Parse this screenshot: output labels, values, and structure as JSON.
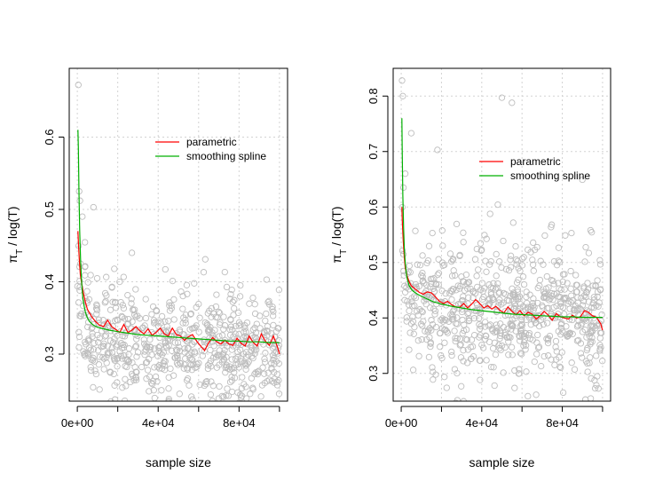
{
  "chart_data": [
    {
      "type": "scatter",
      "title": "",
      "xlabel": "sample size",
      "ylabel_symbol": "π",
      "ylabel_subscript": "T",
      "ylabel_rest": " / log(T)",
      "xlim": [
        -4000,
        104000
      ],
      "ylim": [
        0.235,
        0.695
      ],
      "xticks": [
        0,
        20000,
        40000,
        60000,
        80000,
        100000
      ],
      "xtick_labels": [
        "0e+00",
        "",
        "4e+04",
        "",
        "8e+04",
        ""
      ],
      "yticks": [
        0.3,
        0.4,
        0.5,
        0.6
      ],
      "ytick_labels": [
        "0.3",
        "0.4",
        "0.5",
        "0.6"
      ],
      "grid": true,
      "legend_position": "top-right",
      "point_color": "#bdbdbd",
      "scatter": {
        "description_free": true,
        "n_points": 700,
        "x_max": 100000,
        "curve": {
          "base": 0.3,
          "amp": 0.055,
          "scale": 2200
        },
        "noise_sd": 0.04,
        "seed": 17,
        "extra_points": [
          [
            500,
            0.672
          ],
          [
            900,
            0.525
          ],
          [
            1300,
            0.512
          ],
          [
            2500,
            0.49
          ],
          [
            8000,
            0.503
          ],
          [
            27000,
            0.44
          ]
        ]
      },
      "series": [
        {
          "name": "parametric",
          "color": "#ff0000",
          "x": [
            300,
            600,
            1000,
            1500,
            2000,
            3000,
            4000,
            5000,
            7000,
            9000,
            11000,
            13000,
            15000,
            17000,
            19000,
            21000,
            23000,
            25000,
            27000,
            29000,
            31000,
            33000,
            35000,
            37000,
            39000,
            41000,
            43000,
            45000,
            47000,
            49000,
            51000,
            53000,
            55000,
            57000,
            59000,
            61000,
            63000,
            65000,
            67000,
            69000,
            71000,
            73000,
            75000,
            77000,
            79000,
            81000,
            83000,
            85000,
            87000,
            89000,
            91000,
            93000,
            95000,
            97000,
            99000,
            100000
          ],
          "y": [
            0.47,
            0.45,
            0.43,
            0.41,
            0.4,
            0.385,
            0.372,
            0.362,
            0.352,
            0.345,
            0.34,
            0.338,
            0.347,
            0.338,
            0.334,
            0.33,
            0.341,
            0.33,
            0.333,
            0.338,
            0.332,
            0.328,
            0.335,
            0.326,
            0.33,
            0.336,
            0.328,
            0.325,
            0.336,
            0.327,
            0.325,
            0.319,
            0.324,
            0.327,
            0.318,
            0.311,
            0.305,
            0.316,
            0.323,
            0.317,
            0.314,
            0.319,
            0.314,
            0.312,
            0.322,
            0.315,
            0.311,
            0.325,
            0.316,
            0.311,
            0.328,
            0.318,
            0.312,
            0.325,
            0.31,
            0.3
          ]
        },
        {
          "name": "smoothing spline",
          "color": "#00b000",
          "x": [
            300,
            500,
            800,
            1200,
            1600,
            2000,
            2500,
            3000,
            4000,
            5000,
            6000,
            8000,
            10000,
            13000,
            16000,
            20000,
            25000,
            30000,
            35000,
            40000,
            45000,
            50000,
            55000,
            60000,
            65000,
            70000,
            75000,
            80000,
            85000,
            90000,
            95000,
            100000
          ],
          "y": [
            0.61,
            0.585,
            0.53,
            0.47,
            0.43,
            0.405,
            0.385,
            0.372,
            0.358,
            0.35,
            0.345,
            0.34,
            0.337,
            0.335,
            0.333,
            0.331,
            0.329,
            0.327,
            0.326,
            0.325,
            0.324,
            0.323,
            0.322,
            0.321,
            0.32,
            0.319,
            0.318,
            0.318,
            0.317,
            0.317,
            0.316,
            0.316
          ]
        }
      ]
    },
    {
      "type": "scatter",
      "title": "",
      "xlabel": "sample size",
      "ylabel_symbol": "π",
      "ylabel_subscript": "T",
      "ylabel_rest": " / log(T)",
      "xlim": [
        -4000,
        104000
      ],
      "ylim": [
        0.25,
        0.85
      ],
      "xticks": [
        0,
        20000,
        40000,
        60000,
        80000,
        100000
      ],
      "xtick_labels": [
        "0e+00",
        "",
        "4e+04",
        "",
        "8e+04",
        ""
      ],
      "yticks": [
        0.3,
        0.4,
        0.5,
        0.6,
        0.7,
        0.8
      ],
      "ytick_labels": [
        "0.3",
        "0.4",
        "0.5",
        "0.6",
        "0.7",
        "0.8"
      ],
      "grid": true,
      "legend_position": "top-right",
      "point_color": "#bdbdbd",
      "scatter": {
        "n_points": 750,
        "x_max": 100000,
        "curve": {
          "base": 0.4,
          "amp": 0.06,
          "scale": 3000
        },
        "noise_sd": 0.06,
        "seed": 29,
        "extra_points": [
          [
            400,
            0.828
          ],
          [
            800,
            0.8
          ],
          [
            1100,
            0.635
          ],
          [
            2000,
            0.66
          ],
          [
            5000,
            0.733
          ],
          [
            18000,
            0.703
          ],
          [
            50000,
            0.797
          ],
          [
            55000,
            0.788
          ]
        ]
      },
      "series": [
        {
          "name": "parametric",
          "color": "#ff0000",
          "x": [
            300,
            600,
            1000,
            1500,
            2000,
            3000,
            4000,
            5000,
            7000,
            9000,
            11000,
            13000,
            15000,
            17000,
            19000,
            21000,
            23000,
            25000,
            27000,
            29000,
            31000,
            33000,
            35000,
            37000,
            39000,
            41000,
            43000,
            45000,
            47000,
            49000,
            51000,
            53000,
            55000,
            57000,
            59000,
            61000,
            63000,
            65000,
            67000,
            69000,
            71000,
            73000,
            75000,
            77000,
            79000,
            81000,
            83000,
            85000,
            87000,
            89000,
            91000,
            93000,
            95000,
            97000,
            99000,
            100000
          ],
          "y": [
            0.6,
            0.57,
            0.54,
            0.51,
            0.49,
            0.475,
            0.465,
            0.458,
            0.452,
            0.446,
            0.443,
            0.447,
            0.445,
            0.438,
            0.43,
            0.426,
            0.43,
            0.424,
            0.42,
            0.419,
            0.426,
            0.418,
            0.425,
            0.433,
            0.426,
            0.418,
            0.422,
            0.416,
            0.421,
            0.414,
            0.409,
            0.42,
            0.412,
            0.406,
            0.413,
            0.404,
            0.41,
            0.407,
            0.398,
            0.404,
            0.412,
            0.405,
            0.396,
            0.408,
            0.402,
            0.4,
            0.398,
            0.405,
            0.4,
            0.402,
            0.413,
            0.41,
            0.404,
            0.401,
            0.39,
            0.378
          ]
        },
        {
          "name": "smoothing spline",
          "color": "#00b000",
          "x": [
            300,
            500,
            800,
            1200,
            1600,
            2000,
            2500,
            3000,
            4000,
            5000,
            6000,
            8000,
            10000,
            13000,
            16000,
            20000,
            25000,
            30000,
            35000,
            40000,
            45000,
            50000,
            55000,
            60000,
            65000,
            70000,
            75000,
            80000,
            85000,
            90000,
            95000,
            100000
          ],
          "y": [
            0.76,
            0.7,
            0.62,
            0.56,
            0.52,
            0.5,
            0.482,
            0.47,
            0.458,
            0.452,
            0.448,
            0.443,
            0.439,
            0.434,
            0.429,
            0.425,
            0.421,
            0.418,
            0.415,
            0.413,
            0.411,
            0.409,
            0.407,
            0.406,
            0.405,
            0.404,
            0.403,
            0.402,
            0.402,
            0.401,
            0.401,
            0.401
          ]
        }
      ]
    }
  ]
}
